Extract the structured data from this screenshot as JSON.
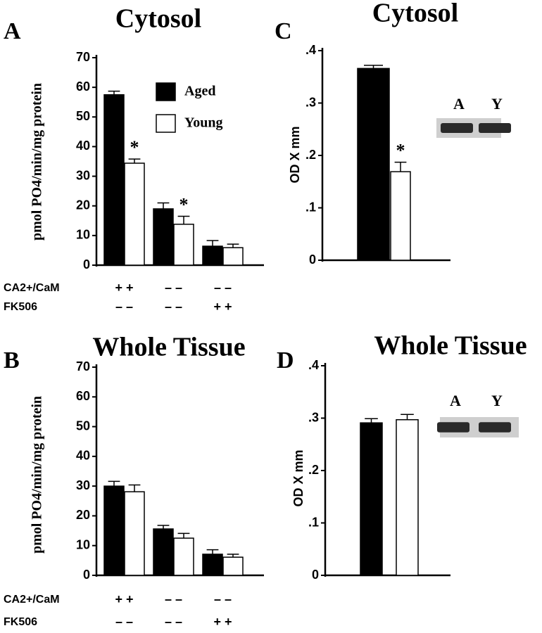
{
  "chart_data": [
    {
      "type": "bar",
      "panel_label": "A",
      "title": "Cytosol",
      "y_label": "pmol PO4/min/mg protein",
      "categories": [
        null,
        null,
        null
      ],
      "series": [
        {
          "name": "Aged",
          "color": "#000000",
          "values": [
            57.5,
            19,
            6.4
          ],
          "errors": [
            1.2,
            2,
            1.9
          ]
        },
        {
          "name": "Young",
          "color": "#ffffff",
          "values": [
            34.4,
            13.8,
            5.9
          ],
          "errors": [
            1.4,
            2.7,
            1.2
          ]
        }
      ],
      "ylim": [
        0,
        70
      ],
      "yticks": [
        0,
        10,
        20,
        30,
        40,
        50,
        60,
        70
      ],
      "legend": "upper right",
      "annotations": [
        {
          "text": "*",
          "series": 1,
          "index": 0
        },
        {
          "text": "*",
          "series": 1,
          "index": 1
        }
      ],
      "condition_rows": [
        {
          "label": "CA2+/CaM",
          "values": [
            "+ +",
            "– –",
            "– –"
          ]
        },
        {
          "label": "FK506",
          "values": [
            "– –",
            "– –",
            "+ +"
          ]
        }
      ]
    },
    {
      "type": "bar",
      "panel_label": "B",
      "title": "Whole Tissue",
      "y_label": "pmol PO4/min/mg protein",
      "categories": [
        null,
        null,
        null
      ],
      "series": [
        {
          "color": "#000000",
          "values": [
            30,
            15.6,
            7.1
          ],
          "errors": [
            1.6,
            1.2,
            1.5
          ]
        },
        {
          "color": "#ffffff",
          "values": [
            28.1,
            12.5,
            6.1
          ],
          "errors": [
            2.3,
            1.6,
            1
          ]
        }
      ],
      "ylim": [
        0,
        70
      ],
      "yticks": [
        0,
        10,
        20,
        30,
        40,
        50,
        60,
        70
      ],
      "condition_rows": [
        {
          "label": "CA2+/CaM",
          "values": [
            "+ +",
            "– –",
            "– –"
          ]
        },
        {
          "label": "FK506",
          "values": [
            "– –",
            "– –",
            "+ +"
          ]
        }
      ]
    },
    {
      "type": "bar",
      "panel_label": "C",
      "title": "Cytosol",
      "y_label": "OD X mm",
      "categories": [
        null
      ],
      "series": [
        {
          "color": "#000000",
          "values": [
            0.366
          ],
          "errors": [
            0.006
          ]
        },
        {
          "color": "#ffffff",
          "values": [
            0.169
          ],
          "errors": [
            0.018
          ]
        }
      ],
      "ylim": [
        0,
        0.4
      ],
      "yticks": [
        0,
        {
          "value": 0.1,
          "label": ".1"
        },
        {
          "value": 0.2,
          "label": ".2"
        },
        {
          "value": 0.3,
          "label": ".3"
        },
        {
          "value": 0.4,
          "label": ".4"
        }
      ],
      "annotations": [
        {
          "text": "*",
          "series": 1,
          "index": 0
        }
      ],
      "blot_labels": [
        "A",
        "Y"
      ]
    },
    {
      "type": "bar",
      "panel_label": "D",
      "title": "Whole Tissue",
      "y_label": "OD X mm",
      "categories": [
        null
      ],
      "series": [
        {
          "color": "#000000",
          "values": [
            0.291
          ],
          "errors": [
            0.008
          ]
        },
        {
          "color": "#ffffff",
          "values": [
            0.297
          ],
          "errors": [
            0.01
          ]
        }
      ],
      "ylim": [
        0,
        0.4
      ],
      "yticks": [
        0,
        {
          "value": 0.1,
          "label": ".1"
        },
        {
          "value": 0.2,
          "label": ".2"
        },
        {
          "value": 0.3,
          "label": ".3"
        },
        {
          "value": 0.4,
          "label": ".4"
        }
      ],
      "blot_labels": [
        "A",
        "Y"
      ]
    }
  ]
}
